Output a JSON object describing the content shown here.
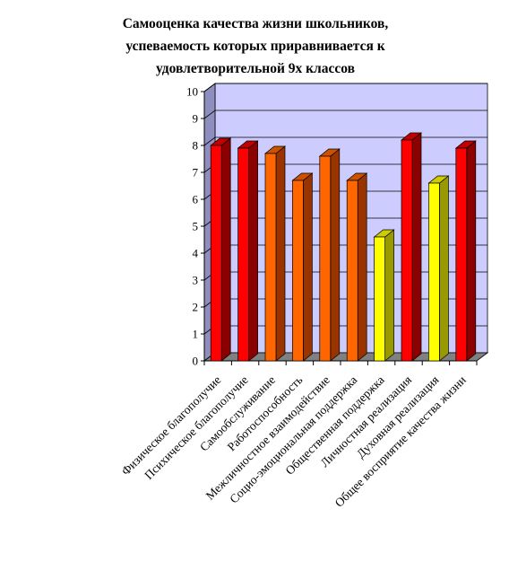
{
  "title_lines": [
    "Самооценка качества жизни школьников,",
    "успеваемость которых приравнивается к",
    "удовлетворительной 9х классов"
  ],
  "chart_data": {
    "type": "bar",
    "title": "Самооценка качества жизни школьников, успеваемость которых приравнивается к удовлетворительной 9х классов",
    "xlabel": "",
    "ylabel": "",
    "ylim": [
      0,
      10
    ],
    "yticks": [
      "0",
      "1",
      "2",
      "3",
      "4",
      "5",
      "6",
      "7",
      "8",
      "9",
      "10"
    ],
    "categories": [
      "Физическое благополучие",
      "Психическое благополучие",
      "Самообслуживание",
      "Работоспособность",
      "Межличностное взаимодействие",
      "Социо-эмоциональная поддержка",
      "Общественная поддержка",
      "Личностная реализация",
      "Духовная реализация",
      "Общее восприятие качества жизни"
    ],
    "values": [
      8.0,
      7.9,
      7.7,
      6.7,
      7.6,
      6.7,
      4.6,
      8.2,
      6.6,
      7.9
    ],
    "bar_colors": [
      "red",
      "red",
      "orange",
      "orange",
      "orange",
      "orange",
      "yellow",
      "red",
      "yellow",
      "red"
    ],
    "colors": {
      "plot_back": "#ccccff",
      "plot_side": "#8f8fbf",
      "floor": "#808080",
      "red_front": "#ff0000",
      "red_side": "#8b0000",
      "red_top": "#c00000",
      "orange_front": "#ff6600",
      "orange_side": "#993300",
      "orange_top": "#cc5200",
      "yellow_front": "#ffff00",
      "yellow_side": "#999900",
      "yellow_top": "#cccc00"
    },
    "grid": true,
    "legend": "none"
  }
}
